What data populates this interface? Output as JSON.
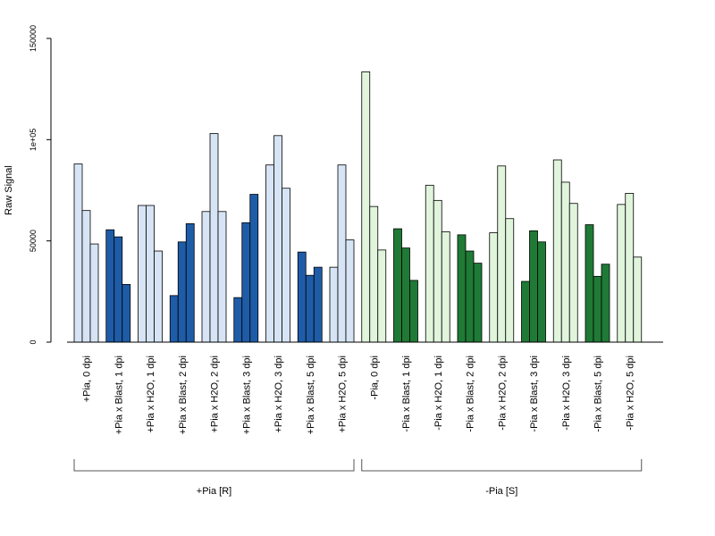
{
  "chart_data": {
    "type": "bar",
    "title": "",
    "xlabel": "",
    "ylabel": "Raw Signal",
    "ylim": [
      0,
      150000
    ],
    "yticks": [
      {
        "value": 0,
        "label": "0"
      },
      {
        "value": 50000,
        "label": "50000"
      },
      {
        "value": 100000,
        "label": "1e+05"
      },
      {
        "value": 150000,
        "label": "150000"
      }
    ],
    "colors": {
      "pia_h2o": "#d6e4f5",
      "pia_blast": "#1f5ca8",
      "nopia_h2o": "#e0f5dc",
      "nopia_blast": "#1f7a35"
    },
    "categories": [
      {
        "label": "+Pia, 0 dpi",
        "values": [
          88000,
          65000,
          48500
        ],
        "color_key": "pia_h2o"
      },
      {
        "label": "+Pia x Blast, 1 dpi",
        "values": [
          55500,
          52000,
          28500
        ],
        "color_key": "pia_blast"
      },
      {
        "label": "+Pia x H2O, 1 dpi",
        "values": [
          67500,
          67500,
          45000
        ],
        "color_key": "pia_h2o"
      },
      {
        "label": "+Pia x Blast, 2 dpi",
        "values": [
          23000,
          49500,
          58500
        ],
        "color_key": "pia_blast"
      },
      {
        "label": "+Pia x H2O, 2 dpi",
        "values": [
          64500,
          103000,
          64500
        ],
        "color_key": "pia_h2o"
      },
      {
        "label": "+Pia x Blast, 3 dpi",
        "values": [
          22000,
          59000,
          73000
        ],
        "color_key": "pia_blast"
      },
      {
        "label": "+Pia x H2O, 3 dpi",
        "values": [
          87500,
          102000,
          76000
        ],
        "color_key": "pia_h2o"
      },
      {
        "label": "+Pia x Blast, 5 dpi",
        "values": [
          44500,
          33000,
          37000
        ],
        "color_key": "pia_blast"
      },
      {
        "label": "+Pia x H2O, 5 dpi",
        "values": [
          37000,
          87500,
          50500
        ],
        "color_key": "pia_h2o"
      },
      {
        "label": "-Pia, 0 dpi",
        "values": [
          133500,
          67000,
          45500
        ],
        "color_key": "nopia_h2o"
      },
      {
        "label": "-Pia x Blast, 1 dpi",
        "values": [
          56000,
          46500,
          30500
        ],
        "color_key": "nopia_blast"
      },
      {
        "label": "-Pia x H2O, 1 dpi",
        "values": [
          77500,
          70000,
          54500
        ],
        "color_key": "nopia_h2o"
      },
      {
        "label": "-Pia x Blast, 2 dpi",
        "values": [
          53000,
          45000,
          39000
        ],
        "color_key": "nopia_blast"
      },
      {
        "label": "-Pia x H2O, 2 dpi",
        "values": [
          54000,
          87000,
          61000
        ],
        "color_key": "nopia_h2o"
      },
      {
        "label": "-Pia x Blast, 3 dpi",
        "values": [
          30000,
          55000,
          49500
        ],
        "color_key": "nopia_blast"
      },
      {
        "label": "-Pia x H2O, 3 dpi",
        "values": [
          90000,
          79000,
          68500
        ],
        "color_key": "nopia_h2o"
      },
      {
        "label": "-Pia x Blast, 5 dpi",
        "values": [
          58000,
          32500,
          38500
        ],
        "color_key": "nopia_blast"
      },
      {
        "label": "-Pia x H2O, 5 dpi",
        "values": [
          68000,
          73500,
          42000
        ],
        "color_key": "nopia_h2o"
      }
    ],
    "groups": [
      {
        "label": "+Pia [R]",
        "from": 0,
        "to": 8
      },
      {
        "label": "-Pia [S]",
        "from": 9,
        "to": 17
      }
    ],
    "grid": false,
    "legend": "none"
  }
}
